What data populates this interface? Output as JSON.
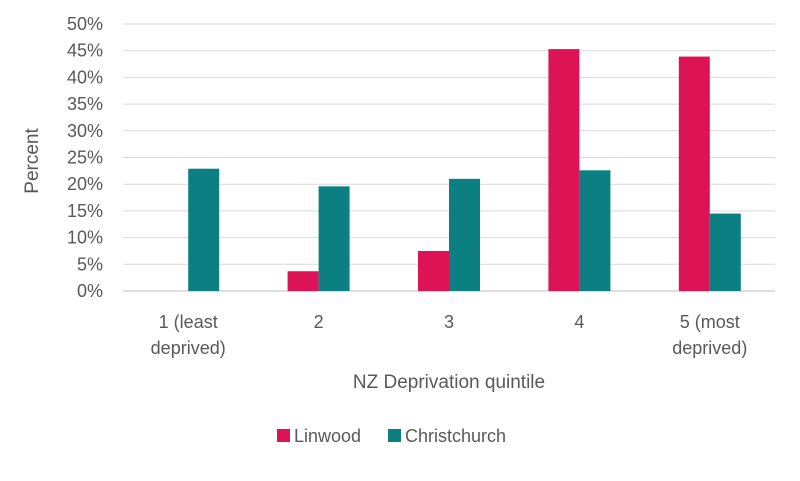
{
  "chart_data": {
    "type": "bar",
    "title": "",
    "xlabel": "NZ Deprivation quintile",
    "ylabel": "Percent",
    "ylim": [
      0,
      50
    ],
    "ytick_step": 5,
    "tick_format": "percent",
    "grid": "horizontal",
    "legend_position": "bottom",
    "categories": [
      [
        "1 (least",
        "deprived)"
      ],
      [
        "2"
      ],
      [
        "3"
      ],
      [
        "4"
      ],
      [
        "5 (most",
        "deprived)"
      ]
    ],
    "series": [
      {
        "name": "Linwood",
        "color": "#DC1455",
        "values": [
          0,
          3.7,
          7.5,
          45.3,
          43.9
        ]
      },
      {
        "name": "Christchurch",
        "color": "#0C7F82",
        "values": [
          22.9,
          19.6,
          21.0,
          22.6,
          14.5
        ]
      }
    ]
  }
}
